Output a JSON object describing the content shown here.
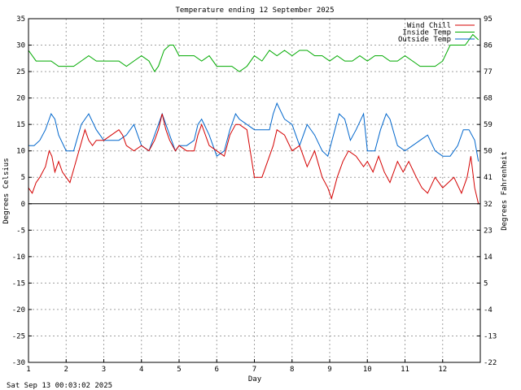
{
  "footer_timestamp": "Sat Sep 13 00:03:02 2025",
  "chart_data": {
    "type": "line",
    "title": "Temperature ending 12 September 2025",
    "xlabel": "Day",
    "ylabel": "Degrees Celsius",
    "y2label": "Degrees Fahrenheit",
    "xlim": [
      1,
      13
    ],
    "ylim": [
      -30,
      35
    ],
    "y2lim": [
      -22,
      95
    ],
    "x_ticks": [
      1,
      2,
      3,
      4,
      5,
      6,
      7,
      8,
      9,
      10,
      11,
      12
    ],
    "x_tick_labels": [
      "1",
      "2",
      "3",
      "4",
      "5",
      "6",
      "7",
      "8",
      "9",
      "10",
      "11",
      "12"
    ],
    "y_ticks": [
      -30,
      -25,
      -20,
      -15,
      -10,
      -5,
      0,
      5,
      10,
      15,
      20,
      25,
      30,
      35
    ],
    "y_tick_labels": [
      "-30",
      "-25",
      "-20",
      "-15",
      "-10",
      "-5",
      "0",
      "5",
      "10",
      "15",
      "20",
      "25",
      "30",
      "35"
    ],
    "y2_ticks": [
      -22,
      -13,
      -4,
      5,
      14,
      23,
      32,
      41,
      50,
      59,
      68,
      77,
      86,
      95
    ],
    "y2_tick_labels": [
      "-22",
      "-13",
      "-4",
      "5",
      "14",
      "23",
      "32",
      "41",
      "50",
      "59",
      "68",
      "77",
      "86",
      "95"
    ],
    "grid": true,
    "legend_position": "top-right",
    "series": [
      {
        "name": "Wind Chill",
        "color": "#d40000",
        "x": [
          1.0,
          1.1,
          1.2,
          1.3,
          1.45,
          1.55,
          1.62,
          1.7,
          1.8,
          1.9,
          2.0,
          2.1,
          2.3,
          2.5,
          2.6,
          2.7,
          2.8,
          3.0,
          3.2,
          3.4,
          3.5,
          3.6,
          3.8,
          4.0,
          4.2,
          4.35,
          4.45,
          4.55,
          4.65,
          4.75,
          4.9,
          5.0,
          5.2,
          5.4,
          5.5,
          5.6,
          5.8,
          6.0,
          6.2,
          6.35,
          6.5,
          6.6,
          6.8,
          7.0,
          7.2,
          7.4,
          7.5,
          7.6,
          7.8,
          8.0,
          8.2,
          8.4,
          8.6,
          8.8,
          8.95,
          9.05,
          9.2,
          9.35,
          9.5,
          9.7,
          9.9,
          10.0,
          10.15,
          10.3,
          10.45,
          10.6,
          10.8,
          10.95,
          11.1,
          11.3,
          11.45,
          11.6,
          11.8,
          12.0,
          12.15,
          12.3,
          12.5,
          12.65,
          12.75,
          12.85,
          12.95
        ],
        "values": [
          3,
          2,
          4,
          5,
          7,
          10,
          9,
          6,
          8,
          6,
          5,
          4,
          9,
          14,
          12,
          11,
          12,
          12,
          13,
          14,
          13,
          11,
          10,
          11,
          10,
          12,
          14,
          17,
          14,
          12,
          10,
          11,
          10,
          10,
          13,
          15,
          11,
          10,
          9,
          13,
          15,
          15,
          14,
          5,
          5,
          9,
          11,
          14,
          13,
          10,
          11,
          7,
          10,
          5,
          3,
          1,
          5,
          8,
          10,
          9,
          7,
          8,
          6,
          9,
          6,
          4,
          8,
          6,
          8,
          5,
          3,
          2,
          5,
          3,
          4,
          5,
          2,
          5,
          9,
          3,
          0
        ]
      },
      {
        "name": "Inside Temp",
        "color": "#00aa00",
        "x": [
          1.0,
          1.2,
          1.4,
          1.6,
          1.8,
          2.0,
          2.2,
          2.4,
          2.6,
          2.8,
          3.0,
          3.2,
          3.4,
          3.6,
          3.8,
          4.0,
          4.2,
          4.35,
          4.45,
          4.6,
          4.75,
          4.85,
          5.0,
          5.2,
          5.4,
          5.6,
          5.8,
          6.0,
          6.2,
          6.4,
          6.6,
          6.8,
          7.0,
          7.2,
          7.4,
          7.6,
          7.8,
          8.0,
          8.2,
          8.4,
          8.6,
          8.8,
          9.0,
          9.2,
          9.4,
          9.6,
          9.8,
          10.0,
          10.2,
          10.4,
          10.6,
          10.8,
          11.0,
          11.2,
          11.4,
          11.6,
          11.8,
          12.0,
          12.2,
          12.4,
          12.6,
          12.8,
          12.95
        ],
        "values": [
          29,
          27,
          27,
          27,
          26,
          26,
          26,
          27,
          28,
          27,
          27,
          27,
          27,
          26,
          27,
          28,
          27,
          25,
          26,
          29,
          30,
          30,
          28,
          28,
          28,
          27,
          28,
          26,
          26,
          26,
          25,
          26,
          28,
          27,
          29,
          28,
          29,
          28,
          29,
          29,
          28,
          28,
          27,
          28,
          27,
          27,
          28,
          27,
          28,
          28,
          27,
          27,
          28,
          27,
          26,
          26,
          26,
          27,
          30,
          30,
          30,
          32,
          31
        ]
      },
      {
        "name": "Outside Temp",
        "color": "#0066cc",
        "x": [
          1.0,
          1.15,
          1.3,
          1.45,
          1.6,
          1.7,
          1.8,
          2.0,
          2.2,
          2.4,
          2.6,
          2.8,
          3.0,
          3.2,
          3.4,
          3.6,
          3.8,
          4.0,
          4.2,
          4.35,
          4.45,
          4.55,
          4.65,
          4.75,
          4.9,
          5.0,
          5.2,
          5.4,
          5.5,
          5.6,
          5.8,
          6.0,
          6.2,
          6.35,
          6.5,
          6.6,
          6.8,
          7.0,
          7.2,
          7.4,
          7.5,
          7.6,
          7.8,
          8.0,
          8.2,
          8.4,
          8.6,
          8.8,
          8.95,
          9.1,
          9.25,
          9.4,
          9.55,
          9.7,
          9.9,
          10.0,
          10.2,
          10.35,
          10.5,
          10.6,
          10.8,
          11.0,
          11.2,
          11.4,
          11.6,
          11.8,
          12.0,
          12.2,
          12.4,
          12.55,
          12.7,
          12.85,
          12.95
        ],
        "values": [
          11,
          11,
          12,
          14,
          17,
          16,
          13,
          10,
          10,
          15,
          17,
          14,
          12,
          12,
          12,
          13,
          15,
          11,
          10,
          13,
          15,
          17,
          15,
          13,
          10,
          11,
          11,
          12,
          15,
          16,
          13,
          9,
          10,
          14,
          17,
          16,
          15,
          14,
          14,
          14,
          17,
          19,
          16,
          15,
          11,
          15,
          13,
          10,
          9,
          13,
          17,
          16,
          12,
          14,
          17,
          10,
          10,
          14,
          17,
          16,
          11,
          10,
          11,
          12,
          13,
          10,
          9,
          9,
          11,
          14,
          14,
          12,
          8
        ]
      }
    ]
  }
}
